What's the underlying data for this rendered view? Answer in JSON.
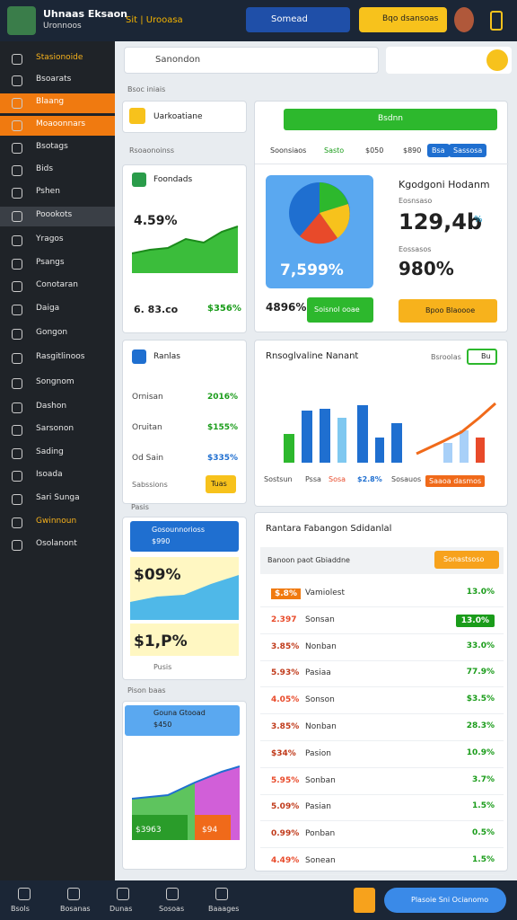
{
  "header": {
    "title": "Uhnaas Eksaon",
    "subtitle": "Uronnoos",
    "tag": "Sit | Urooasa",
    "search": "Somead",
    "button": "Bqo dsansoas"
  },
  "sidebar": [
    "Stasionoide",
    "Bsoarats",
    "Blaang",
    "Moaoonnars",
    "Bsotags",
    "Bids",
    "Pshen",
    "Poookots",
    "Yragos",
    "Psangs",
    "Conotaran",
    "Daiga",
    "Gongon",
    "Rasgitlinoos",
    "Songnom",
    "Dashon",
    "Sarsonon",
    "Sading",
    "Isoada",
    "Sari Sunga",
    "Gwinnoun",
    "Osolanont"
  ],
  "search": "Sanondon",
  "section_label": "Bsoc iniais",
  "left": {
    "dropdown": "Uarkoatiane",
    "label": "Rsoaonoinss",
    "card1": {
      "title": "Foondads",
      "value": "4.59%",
      "foot_left": "6. 83.co",
      "foot_right": "$356%"
    },
    "card2": {
      "title": "Ranlas",
      "rows": [
        [
          "Ornisan",
          "2016%"
        ],
        [
          "Oruitan",
          "$155%"
        ],
        [
          "Od Sain",
          "$335%"
        ]
      ],
      "note": "Sabssions",
      "button": "Tuas",
      "footer": "Pasis"
    },
    "card3": {
      "title": "Gosounnorioss",
      "sub": "$990",
      "value1": "$09%",
      "value2": "$1,P%",
      "footer": "Pusis"
    },
    "label2": "Pison baas",
    "card4": {
      "title": "Gouna Gtooad",
      "sub": "$450",
      "v1": "$3963",
      "v2": "$94"
    }
  },
  "right": {
    "dropdown": "Bsdnn",
    "tabs": [
      "Soonsiaos",
      "Sasto",
      "$050",
      "$890",
      "Bsa",
      "Sassosa"
    ],
    "pie_value": "7,599%",
    "pie_foot": "4896%",
    "pie_button": "Soisnol ooae",
    "kpi_title": "Kgodgoni Hodanm",
    "kpi_label1": "Eosnsaso",
    "kpi_value1": "129,4b",
    "kpi_unit": "%",
    "kpi_label2": "Eossasos",
    "kpi_value2": "980%",
    "kpi_button": "Bpoo Blaoooe",
    "chart_title": "Rnsoglvaline Nanant",
    "chart_select": "Bsroolas",
    "chart_toggle": "Bu",
    "chart_foot": [
      "Sostsun",
      "Pssa",
      "Sosa",
      "$2.8%",
      "Sosauos",
      "Saaoa dasmos"
    ],
    "table_title": "Rantara Fabangon Sdidanlal",
    "table_header": "Banoon paot Gbiaddne",
    "table_button": "Sonastsoso",
    "rows": [
      [
        "$.8%",
        "Vamiolest",
        "13.0%"
      ],
      [
        "2.397",
        "Sonsan",
        "13.0%"
      ],
      [
        "3.85%",
        "Nonban",
        "33.0%"
      ],
      [
        "5.93%",
        "Pasiaa",
        "77.9%"
      ],
      [
        "4.05%",
        "Sonson",
        "$3.5%"
      ],
      [
        "3.85%",
        "Nonban",
        "28.3%"
      ],
      [
        "$34%",
        "Pasion",
        "10.9%"
      ],
      [
        "5.95%",
        "Sonban",
        "3.7%"
      ],
      [
        "5.09%",
        "Pasian",
        "1.5%"
      ],
      [
        "0.99%",
        "Ponban",
        "0.5%"
      ],
      [
        "4.49%",
        "Sonean",
        "1.5%"
      ]
    ]
  },
  "bottom": {
    "tabs": [
      "Bsols",
      "Bosanas",
      "Dunas",
      "Sosoas",
      "Baaages"
    ],
    "button": "Plasoie Sni Ocianomo"
  }
}
